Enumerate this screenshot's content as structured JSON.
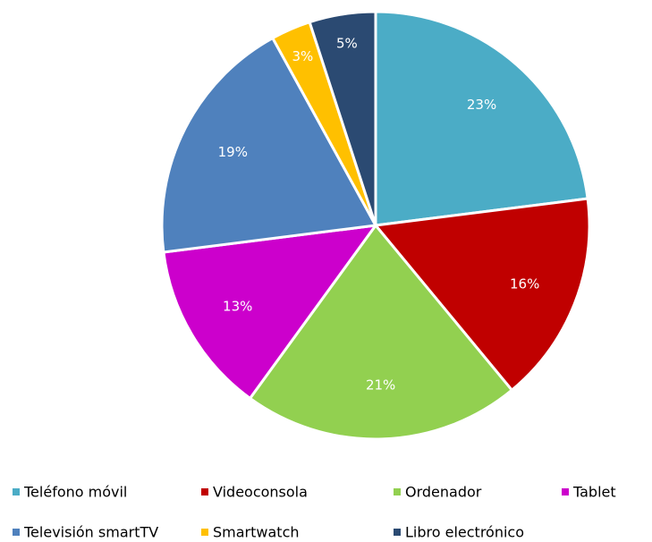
{
  "chart_data": {
    "type": "pie",
    "categories": [
      "Teléfono móvil",
      "Videoconsola",
      "Ordenador",
      "Tablet",
      "Televisión smartTV",
      "Smartwatch",
      "Libro electrónico"
    ],
    "values": [
      23,
      16,
      21,
      13,
      19,
      3,
      5
    ],
    "value_labels": [
      "23%",
      "16%",
      "21%",
      "13%",
      "19%",
      "3%",
      "5%"
    ],
    "colors": [
      "#4bacc6",
      "#c00000",
      "#92d050",
      "#cc00cc",
      "#4f81bd",
      "#ffc000",
      "#2b4a72"
    ],
    "legend": "bottom"
  }
}
